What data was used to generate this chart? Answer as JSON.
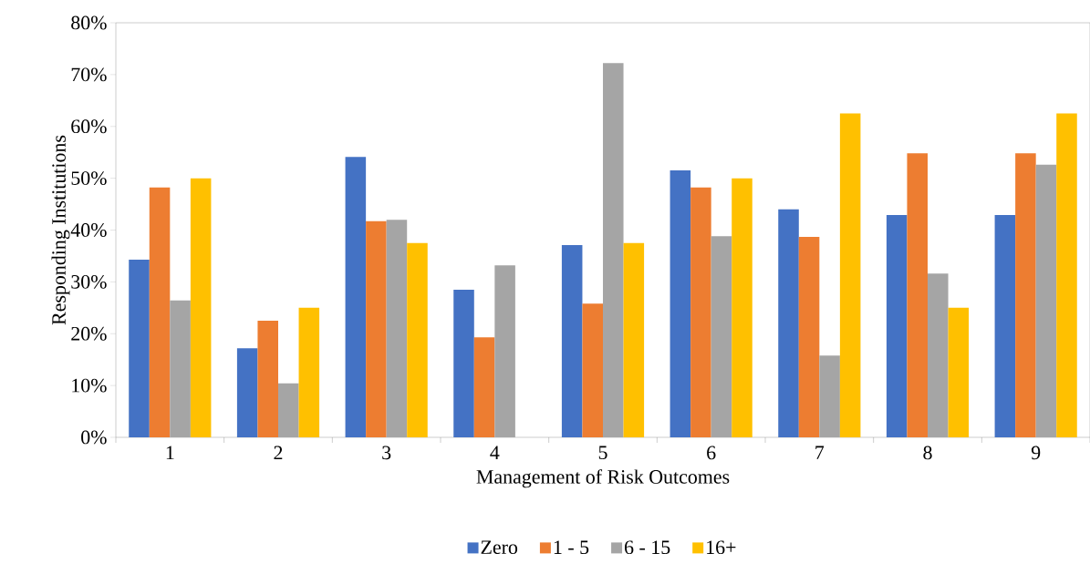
{
  "chart_data": {
    "type": "bar",
    "xlabel": "Management of Risk Outcomes",
    "ylabel": "Responding Institutions",
    "categories": [
      "1",
      "2",
      "3",
      "4",
      "5",
      "6",
      "7",
      "8",
      "9"
    ],
    "series": [
      {
        "name": "Zero",
        "color": "#4472c4",
        "values": [
          34.3,
          17.2,
          54.1,
          28.5,
          37.1,
          51.5,
          44,
          42.9,
          42.9
        ]
      },
      {
        "name": "1 - 5",
        "color": "#ed7d31",
        "values": [
          48.2,
          22.5,
          41.7,
          19.3,
          25.8,
          48.2,
          38.7,
          54.8,
          54.8
        ]
      },
      {
        "name": "6 - 15",
        "color": "#a5a5a5",
        "values": [
          26.4,
          10.4,
          42,
          33.2,
          72.2,
          38.8,
          15.8,
          31.6,
          52.6
        ]
      },
      {
        "name": "16+",
        "color": "#ffc000",
        "values": [
          50,
          25,
          37.5,
          0,
          37.5,
          50,
          62.5,
          25,
          62.5
        ]
      }
    ],
    "ylim": [
      0,
      80
    ],
    "yticks": [
      {
        "value": 0,
        "label": "0%"
      },
      {
        "value": 10,
        "label": "10%"
      },
      {
        "value": 20,
        "label": "20%"
      },
      {
        "value": 30,
        "label": "30%"
      },
      {
        "value": 40,
        "label": "40%"
      },
      {
        "value": 50,
        "label": "50%"
      },
      {
        "value": 60,
        "label": "60%"
      },
      {
        "value": 70,
        "label": "70%"
      },
      {
        "value": 80,
        "label": "80%"
      }
    ],
    "legend": "bottom",
    "grid": false
  }
}
